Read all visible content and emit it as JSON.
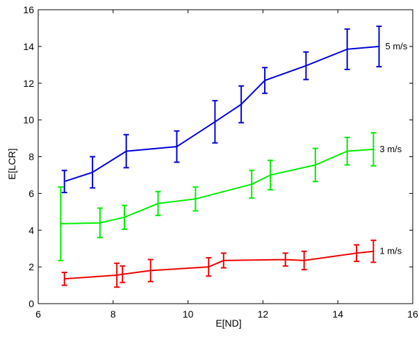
{
  "chart_data": {
    "type": "line",
    "title": "",
    "xlabel": "E[ND]",
    "ylabel": "E[LCR]",
    "xlim": [
      6,
      16
    ],
    "ylim": [
      0,
      16
    ],
    "xticks": [
      "6",
      "8",
      "10",
      "12",
      "14",
      "16"
    ],
    "yticks": [
      "0",
      "2",
      "4",
      "6",
      "8",
      "10",
      "12",
      "14",
      "16"
    ],
    "grid": false,
    "series": [
      {
        "name": "5 m/s",
        "color": "#0000dd",
        "x": [
          6.7,
          7.45,
          8.35,
          9.7,
          10.72,
          11.42,
          12.05,
          13.15,
          14.25,
          15.1
        ],
        "y": [
          6.65,
          7.15,
          8.3,
          8.55,
          9.9,
          10.85,
          12.15,
          12.95,
          13.85,
          14.0
        ],
        "err": [
          0.6,
          0.85,
          0.9,
          0.85,
          1.15,
          1.0,
          0.7,
          0.75,
          1.1,
          1.1
        ]
      },
      {
        "name": "3 m/s",
        "color": "#00ee00",
        "x": [
          6.6,
          7.65,
          8.3,
          9.2,
          10.2,
          11.7,
          12.2,
          13.4,
          14.25,
          14.95
        ],
        "y": [
          4.35,
          4.4,
          4.7,
          5.45,
          5.7,
          6.5,
          7.0,
          7.55,
          8.3,
          8.4
        ],
        "err": [
          2.0,
          0.8,
          0.65,
          0.65,
          0.65,
          0.75,
          0.8,
          0.9,
          0.75,
          0.9
        ]
      },
      {
        "name": "1 m/s",
        "color": "#ee0000",
        "x": [
          6.7,
          8.1,
          8.25,
          9.0,
          10.55,
          10.95,
          12.6,
          13.1,
          14.5,
          14.95
        ],
        "y": [
          1.35,
          1.55,
          1.6,
          1.8,
          2.0,
          2.35,
          2.4,
          2.35,
          2.75,
          2.85
        ],
        "err": [
          0.35,
          0.65,
          0.45,
          0.6,
          0.5,
          0.4,
          0.35,
          0.5,
          0.45,
          0.6
        ]
      }
    ]
  }
}
